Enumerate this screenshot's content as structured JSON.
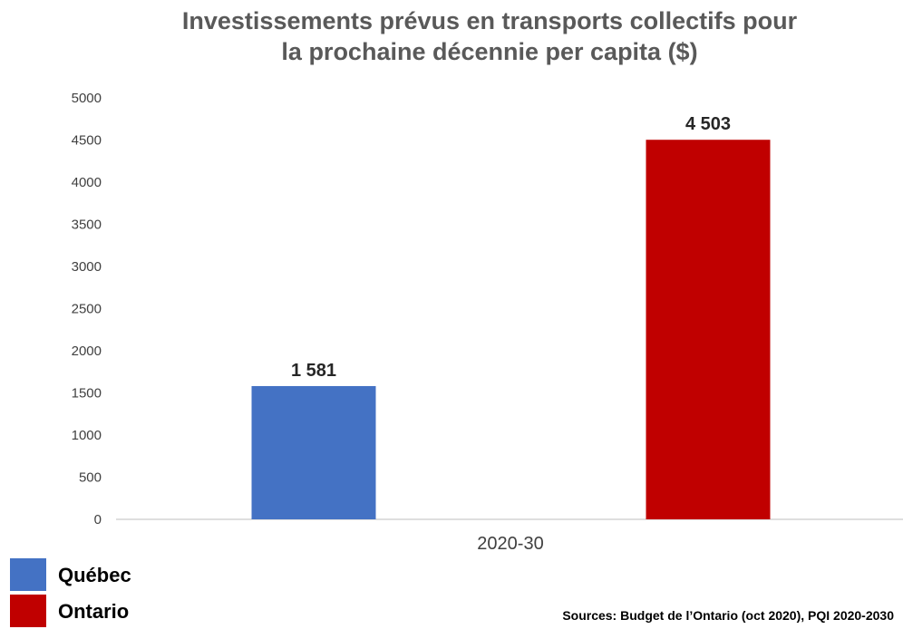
{
  "chart_data": {
    "type": "bar",
    "title_lines": [
      "Investissements prévus en transports collectifs pour",
      "la prochaine décennie per capita ($)"
    ],
    "categories": [
      "2020-30"
    ],
    "series": [
      {
        "name": "Québec",
        "values": [
          1581
        ],
        "value_label": "1 581",
        "color": "#4472C4"
      },
      {
        "name": "Ontario",
        "values": [
          4503
        ],
        "value_label": "4 503",
        "color": "#C00000"
      }
    ],
    "y_ticks": [
      "0",
      "500",
      "1000",
      "1500",
      "2000",
      "2500",
      "3000",
      "3500",
      "4000",
      "4500",
      "5000"
    ],
    "ylim": [
      0,
      5000
    ],
    "grid": false,
    "legend_position": "bottom-left",
    "source": "Sources: Budget de l’Ontario (oct 2020), PQI 2020-2030"
  }
}
